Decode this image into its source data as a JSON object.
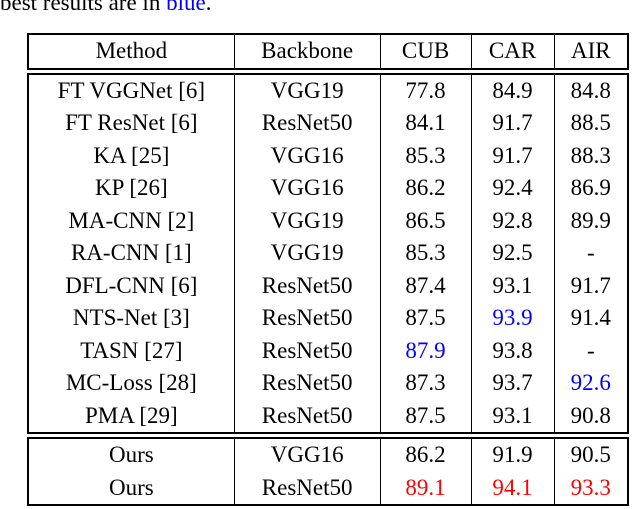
{
  "caption": {
    "prefix": "best results are in ",
    "highlight": "blue",
    "suffix": "."
  },
  "colors": {
    "red": "#ff0000",
    "blue": "#0000ff",
    "text": "#000000"
  },
  "table": {
    "headers": [
      "Method",
      "Backbone",
      "CUB",
      "CAR",
      "AIR"
    ],
    "body_rows": [
      {
        "cells": [
          "FT VGGNet [6]",
          "VGG19",
          "77.8",
          "84.9",
          "84.8"
        ],
        "colors": [
          null,
          null,
          null,
          null,
          null
        ]
      },
      {
        "cells": [
          "FT ResNet [6]",
          "ResNet50",
          "84.1",
          "91.7",
          "88.5"
        ],
        "colors": [
          null,
          null,
          null,
          null,
          null
        ]
      },
      {
        "cells": [
          "KA [25]",
          "VGG16",
          "85.3",
          "91.7",
          "88.3"
        ],
        "colors": [
          null,
          null,
          null,
          null,
          null
        ]
      },
      {
        "cells": [
          "KP [26]",
          "VGG16",
          "86.2",
          "92.4",
          "86.9"
        ],
        "colors": [
          null,
          null,
          null,
          null,
          null
        ]
      },
      {
        "cells": [
          "MA-CNN [2]",
          "VGG19",
          "86.5",
          "92.8",
          "89.9"
        ],
        "colors": [
          null,
          null,
          null,
          null,
          null
        ]
      },
      {
        "cells": [
          "RA-CNN [1]",
          "VGG19",
          "85.3",
          "92.5",
          "-"
        ],
        "colors": [
          null,
          null,
          null,
          null,
          null
        ]
      },
      {
        "cells": [
          "DFL-CNN [6]",
          "ResNet50",
          "87.4",
          "93.1",
          "91.7"
        ],
        "colors": [
          null,
          null,
          null,
          null,
          null
        ]
      },
      {
        "cells": [
          "NTS-Net [3]",
          "ResNet50",
          "87.5",
          "93.9",
          "91.4"
        ],
        "colors": [
          null,
          null,
          null,
          "blue",
          null
        ]
      },
      {
        "cells": [
          "TASN [27]",
          "ResNet50",
          "87.9",
          "93.8",
          "-"
        ],
        "colors": [
          null,
          null,
          "blue",
          null,
          null
        ]
      },
      {
        "cells": [
          "MC-Loss [28]",
          "ResNet50",
          "87.3",
          "93.7",
          "92.6"
        ],
        "colors": [
          null,
          null,
          null,
          null,
          "blue"
        ]
      },
      {
        "cells": [
          "PMA [29]",
          "ResNet50",
          "87.5",
          "93.1",
          "90.8"
        ],
        "colors": [
          null,
          null,
          null,
          null,
          null
        ]
      }
    ],
    "ours_rows": [
      {
        "cells": [
          "Ours",
          "VGG16",
          "86.2",
          "91.9",
          "90.5"
        ],
        "colors": [
          null,
          null,
          null,
          null,
          null
        ]
      },
      {
        "cells": [
          "Ours",
          "ResNet50",
          "89.1",
          "94.1",
          "93.3"
        ],
        "colors": [
          null,
          null,
          "red",
          "red",
          "red"
        ]
      }
    ]
  }
}
